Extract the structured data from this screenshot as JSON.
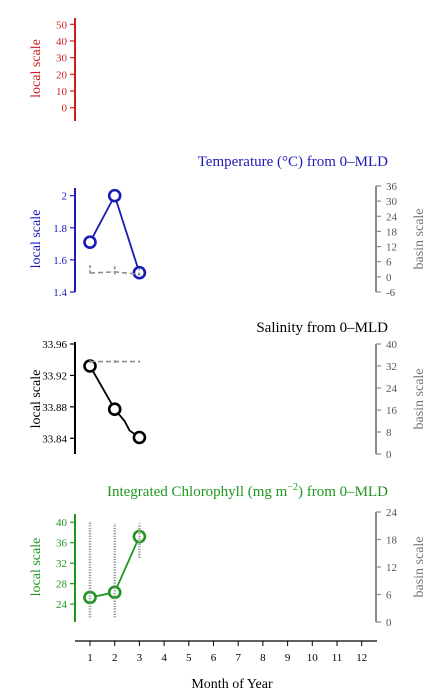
{
  "chart_data": [
    {
      "type": "line",
      "title": "",
      "ylabel": "local scale",
      "color": "#cc1f1f",
      "ylim": [
        -8,
        55
      ],
      "yticks": [
        0,
        10,
        20,
        30,
        40,
        50
      ],
      "series": []
    },
    {
      "type": "line",
      "title": "Temperature (°C) from 0–MLD",
      "ylabel": "local scale",
      "ylabel_right": "basin scale",
      "color": "#1a1ab4",
      "ylim": [
        1.4,
        2.06
      ],
      "yticks": [
        1.4,
        1.6,
        1.8,
        2.0
      ],
      "ylim_right": [
        -6,
        36
      ],
      "yticks_right": [
        -6,
        0,
        6,
        12,
        18,
        24,
        30,
        36
      ],
      "series": [
        {
          "x": [
            1,
            2,
            3
          ],
          "values": [
            1.71,
            2.0,
            1.52
          ],
          "axis": "local",
          "style": "solid-circles"
        },
        {
          "x": [
            1,
            2,
            3
          ],
          "values": [
            1.5,
            2.0,
            1.0
          ],
          "axis": "basin",
          "style": "dashed",
          "error_low": [
            0,
            1,
            0.5
          ],
          "error_high": [
            4,
            3,
            2
          ]
        }
      ]
    },
    {
      "type": "line",
      "title": "Salinity from 0–MLD",
      "ylabel": "local scale",
      "ylabel_right": "basin scale",
      "color": "#000000",
      "ylim": [
        33.82,
        33.96
      ],
      "yticks": [
        33.84,
        33.88,
        33.92,
        33.96
      ],
      "ylim_right": [
        0,
        40
      ],
      "yticks_right": [
        0,
        8,
        16,
        24,
        32,
        40
      ],
      "series": [
        {
          "x": [
            1,
            2,
            2.4,
            2.6,
            3
          ],
          "values": [
            33.932,
            33.877,
            33.862,
            33.85,
            33.841
          ],
          "axis": "local",
          "style": "solid-circles",
          "markers_at": [
            1,
            2,
            3
          ]
        },
        {
          "x": [
            1,
            2,
            3
          ],
          "values": [
            33.6,
            33.6,
            33.6
          ],
          "axis": "basin",
          "style": "dashed",
          "error_low": [
            0.5,
            0.5,
            0.3
          ],
          "error_high": [
            0.5,
            0.5,
            0.3
          ]
        }
      ]
    },
    {
      "type": "line",
      "title": "Integrated Chlorophyll (mg m",
      "title_sup": "−2",
      "title_suffix": ") from 0–MLD",
      "ylabel": "local scale",
      "ylabel_right": "basin scale",
      "color": "#1f961f",
      "ylim": [
        20.5,
        42
      ],
      "yticks": [
        24,
        28,
        32,
        36,
        40
      ],
      "ylim_right": [
        0,
        24
      ],
      "yticks_right": [
        0,
        6,
        12,
        18,
        24
      ],
      "series": [
        {
          "x": [
            1,
            2,
            3
          ],
          "values": [
            25.3,
            26.3,
            37.2
          ],
          "axis": "local",
          "style": "solid-circles"
        },
        {
          "x": [
            1,
            2,
            3
          ],
          "values": [
            4.8,
            5.5,
            18.0
          ],
          "axis": "basin",
          "style": "dotted-spread",
          "spread_low": [
            1,
            1,
            14
          ],
          "spread_high": [
            22,
            21.5,
            21.5
          ]
        }
      ]
    }
  ],
  "x_axis": {
    "label": "Month of Year",
    "ticks": [
      "1",
      "2",
      "3",
      "4",
      "5",
      "6",
      "7",
      "8",
      "9",
      "10",
      "11",
      "12"
    ]
  }
}
